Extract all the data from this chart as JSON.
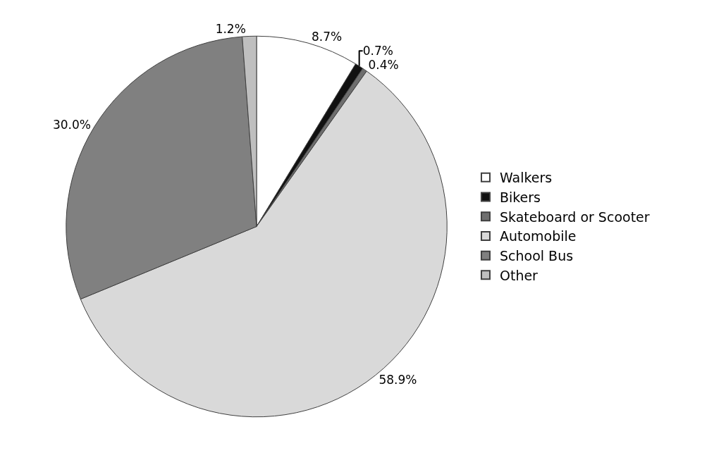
{
  "chart_data": {
    "type": "pie",
    "categories": [
      "Walkers",
      "Bikers",
      "Skateboard or Scooter",
      "Automobile",
      "School Bus",
      "Other"
    ],
    "values": [
      8.7,
      0.7,
      0.4,
      58.9,
      30.0,
      1.2
    ],
    "value_labels": [
      "8.7%",
      "0.7%",
      "0.4%",
      "58.9%",
      "30.0%",
      "1.2%"
    ],
    "colors": [
      "#ffffff",
      "#111111",
      "#6e6e6e",
      "#d9d9d9",
      "#808080",
      "#bfbfbf"
    ],
    "legend": "right"
  }
}
